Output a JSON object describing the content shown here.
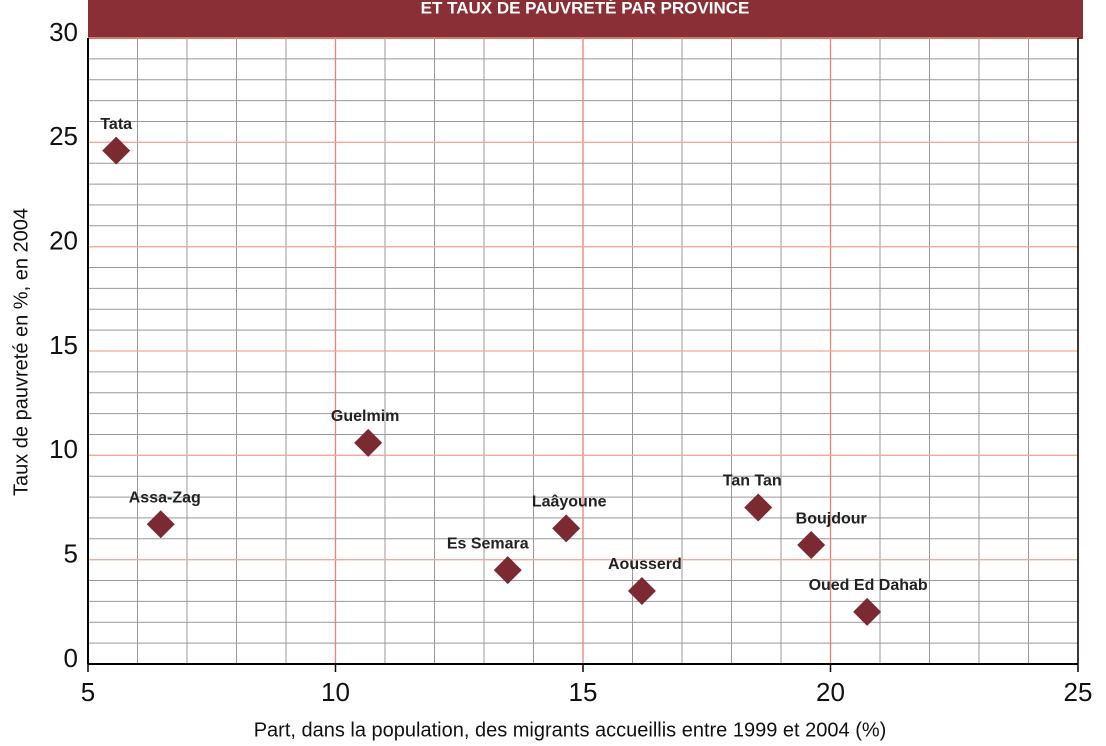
{
  "chart_data": {
    "type": "scatter",
    "title": "ET TAUX DE PAUVRETÉ PAR PROVINCE",
    "x_label": "Part, dans la population, des migrants accueillis entre 1999 et 2004 (%)",
    "y_label": "Taux de pauvreté en %, en 2004",
    "labels": [
      "Tata",
      "Assa-Zag",
      "Guelmim",
      "Es Semara",
      "Laâyoune",
      "Aousserd",
      "Tan Tan",
      "Boujdour",
      "Oued Ed Dahab"
    ],
    "x": [
      5.57,
      6.47,
      10.66,
      13.48,
      14.66,
      16.19,
      18.54,
      19.61,
      20.74
    ],
    "values": [
      24.6,
      6.7,
      10.6,
      4.5,
      6.5,
      3.5,
      7.5,
      5.7,
      2.5
    ],
    "color": "#7b2a31",
    "xlim": [
      5,
      25
    ],
    "ylim": [
      0,
      30
    ],
    "xticks": [
      5,
      10,
      15,
      20,
      25
    ],
    "yticks": [
      0,
      5,
      10,
      15,
      20,
      25,
      30
    ],
    "grid": true
  }
}
